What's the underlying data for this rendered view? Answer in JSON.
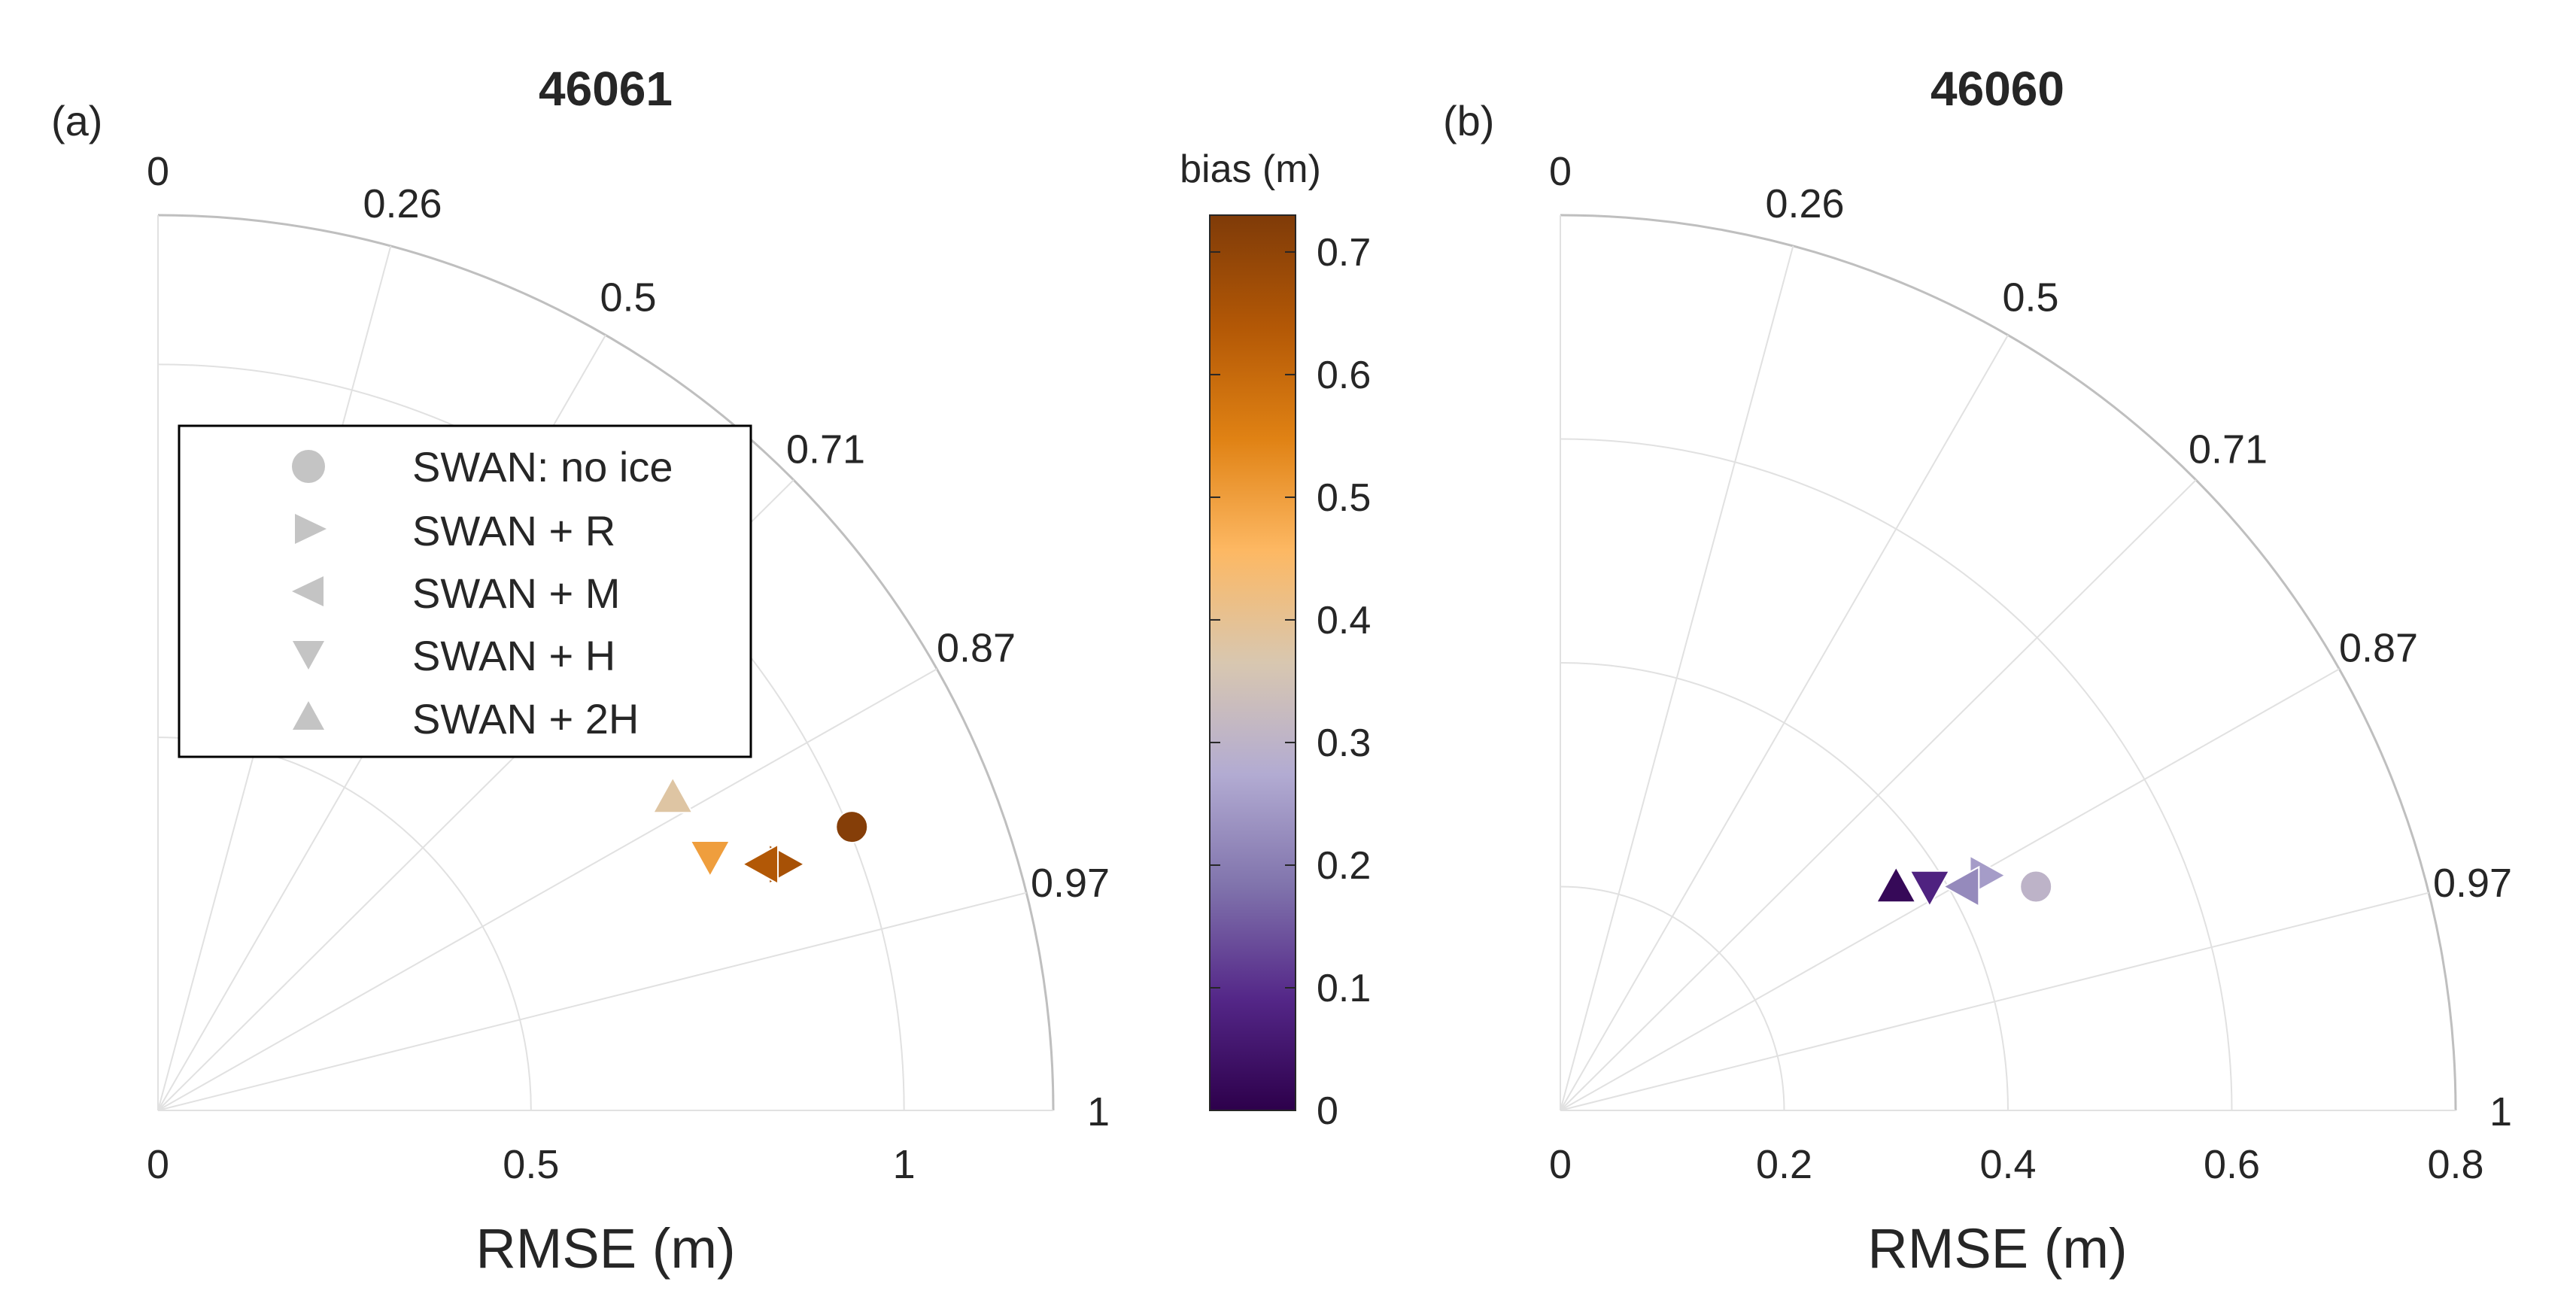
{
  "chart_data": [
    {
      "type": "scatter",
      "subtype": "taylor-diagram-quadrant",
      "panel_label": "(a)",
      "title": "46061",
      "xlabel": "RMSE (m)",
      "radial_ticks": [
        "0",
        "0.5",
        "1"
      ],
      "radial_max": 1.2,
      "correlation_ticks": [
        "0",
        "0.26",
        "0.5",
        "0.71",
        "0.87",
        "0.97",
        "1"
      ],
      "correlation_values": [
        0,
        0.26,
        0.5,
        0.71,
        0.87,
        0.97,
        1
      ],
      "grid": true,
      "legend_position": "upper-left",
      "legend": [
        {
          "marker": "circle",
          "label": "SWAN: no ice"
        },
        {
          "marker": "triangle-right",
          "label": "SWAN + R"
        },
        {
          "marker": "triangle-left",
          "label": "SWAN + M"
        },
        {
          "marker": "triangle-down",
          "label": "SWAN + H"
        },
        {
          "marker": "triangle-up",
          "label": "SWAN + 2H"
        }
      ],
      "points": [
        {
          "series": "SWAN: no ice",
          "marker": "circle",
          "x": 0.93,
          "y": 0.38,
          "bias": 0.72
        },
        {
          "series": "SWAN + R",
          "marker": "triangle-right",
          "x": 0.84,
          "y": 0.33,
          "bias": 0.66
        },
        {
          "series": "SWAN + M",
          "marker": "triangle-left",
          "x": 0.81,
          "y": 0.33,
          "bias": 0.64
        },
        {
          "series": "SWAN + H",
          "marker": "triangle-down",
          "x": 0.74,
          "y": 0.34,
          "bias": 0.5
        },
        {
          "series": "SWAN + 2H",
          "marker": "triangle-up",
          "x": 0.69,
          "y": 0.42,
          "bias": 0.38
        }
      ]
    },
    {
      "type": "scatter",
      "subtype": "taylor-diagram-quadrant",
      "panel_label": "(b)",
      "title": "46060",
      "xlabel": "RMSE (m)",
      "radial_ticks": [
        "0",
        "0.2",
        "0.4",
        "0.6",
        "0.8"
      ],
      "radial_max": 0.8,
      "correlation_ticks": [
        "0",
        "0.26",
        "0.5",
        "0.71",
        "0.87",
        "0.97",
        "1"
      ],
      "correlation_values": [
        0,
        0.26,
        0.5,
        0.71,
        0.87,
        0.97,
        1
      ],
      "grid": true,
      "points": [
        {
          "series": "SWAN: no ice",
          "marker": "circle",
          "x": 0.425,
          "y": 0.2,
          "bias": 0.3
        },
        {
          "series": "SWAN + R",
          "marker": "triangle-right",
          "x": 0.38,
          "y": 0.21,
          "bias": 0.25
        },
        {
          "series": "SWAN + M",
          "marker": "triangle-left",
          "x": 0.36,
          "y": 0.2,
          "bias": 0.22
        },
        {
          "series": "SWAN + H",
          "marker": "triangle-down",
          "x": 0.33,
          "y": 0.2,
          "bias": 0.08
        },
        {
          "series": "SWAN + 2H",
          "marker": "triangle-up",
          "x": 0.3,
          "y": 0.2,
          "bias": 0.02
        }
      ]
    }
  ],
  "colorbar": {
    "title": "bias (m)",
    "min": 0,
    "max": 0.73,
    "ticks": [
      "0",
      "0.1",
      "0.2",
      "0.3",
      "0.4",
      "0.5",
      "0.6",
      "0.7"
    ],
    "stops": [
      "#2d004b",
      "#542788",
      "#8073ac",
      "#b2abd2",
      "#d8c7b0",
      "#fdb863",
      "#e08214",
      "#b35806",
      "#7f3b08"
    ]
  },
  "colors": {
    "grid": "#e1e1e1",
    "outer_arc": "#bfbfbf",
    "legend_marker": "#c4c4c4"
  }
}
